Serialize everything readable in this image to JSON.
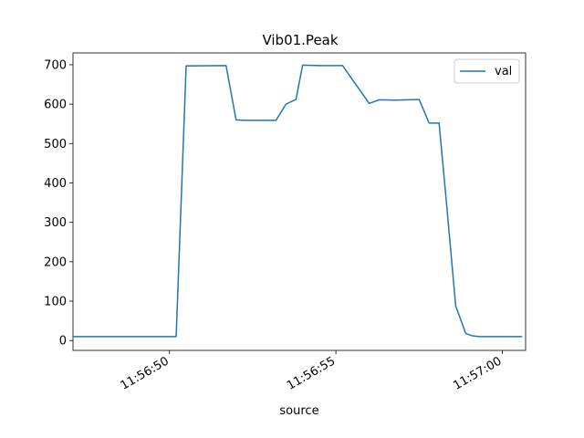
{
  "chart_data": {
    "type": "line",
    "title": "Vib01.Peak",
    "xlabel": "source",
    "ylabel": "",
    "x_axis_type": "time",
    "xlim": [
      "11:56:47.1",
      "11:57:00.7"
    ],
    "ylim": [
      -25,
      730
    ],
    "x_ticks": [
      "11:56:50",
      "11:56:55",
      "11:57:00"
    ],
    "y_ticks": [
      0,
      100,
      200,
      300,
      400,
      500,
      600,
      700
    ],
    "grid": false,
    "legend": {
      "placement": "top-right",
      "entries": [
        "val"
      ]
    },
    "colors": {
      "val": "#1f77b4"
    },
    "series": [
      {
        "name": "val",
        "x": [
          "11:56:47.10",
          "11:56:47.70",
          "11:56:48.00",
          "11:56:48.60",
          "11:56:49.50",
          "11:56:50.20",
          "11:56:50.50",
          "11:56:51.70",
          "11:56:52.00",
          "11:56:52.30",
          "11:56:53.20",
          "11:56:53.50",
          "11:56:53.80",
          "11:56:54.00",
          "11:56:54.50",
          "11:56:55.20",
          "11:56:56.00",
          "11:56:56.30",
          "11:56:56.80",
          "11:56:57.50",
          "11:56:57.80",
          "11:56:58.10",
          "11:56:58.30",
          "11:56:58.60",
          "11:56:58.90",
          "11:56:59.10",
          "11:56:59.30",
          "11:56:59.60",
          "11:57:00.60"
        ],
        "values": [
          10,
          10,
          10,
          10,
          10,
          10,
          697,
          698,
          560,
          559,
          559,
          600,
          612,
          699,
          698,
          698,
          602,
          611,
          610,
          612,
          552,
          552,
          370,
          88,
          18,
          12,
          10,
          10,
          10
        ]
      }
    ]
  }
}
